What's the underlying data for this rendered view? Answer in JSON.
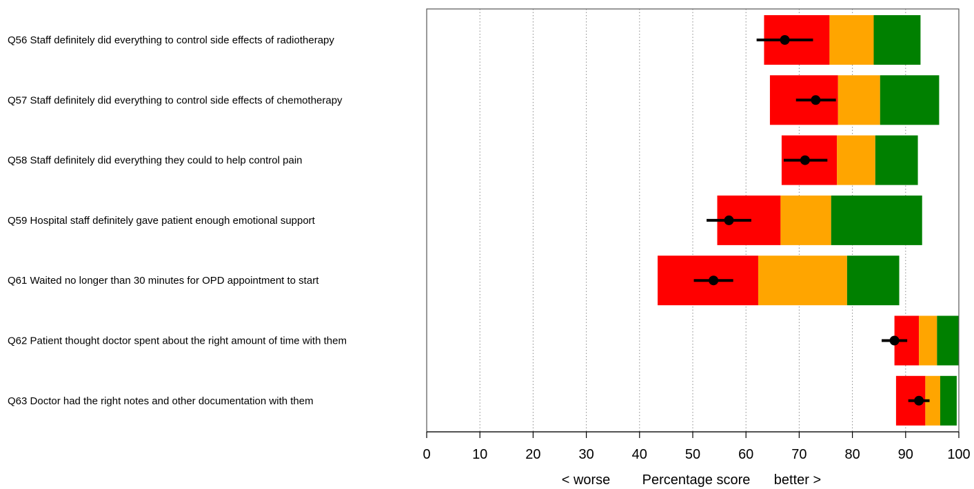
{
  "chart_data": {
    "type": "bar",
    "orientation": "horizontal",
    "x_axis": {
      "left_label": "< worse",
      "title": "Percentage score",
      "right_label": "better >",
      "range": [
        0,
        100
      ],
      "ticks": [
        "0",
        "10",
        "20",
        "30",
        "40",
        "50",
        "60",
        "70",
        "80",
        "90",
        "100"
      ]
    },
    "grid": "vertical dotted",
    "band_colors": {
      "lower": "#ff0000",
      "middle": "#ffa500",
      "upper": "#008000",
      "marker": "#000000"
    },
    "questions": [
      {
        "label": "Q56 Staff definitely did everything to control side effects of radiotherapy",
        "bands": [
          63.4,
          75.7,
          84.0,
          92.8
        ],
        "score": 67.3,
        "ci": [
          62.0,
          72.6
        ]
      },
      {
        "label": "Q57 Staff definitely did everything to control side effects of chemotherapy",
        "bands": [
          64.5,
          77.3,
          85.2,
          96.3
        ],
        "score": 73.1,
        "ci": [
          69.4,
          76.9
        ]
      },
      {
        "label": "Q58 Staff definitely did everything they could to help control pain",
        "bands": [
          66.7,
          77.1,
          84.3,
          92.3
        ],
        "score": 71.1,
        "ci": [
          67.1,
          75.3
        ]
      },
      {
        "label": "Q59 Hospital staff definitely gave patient enough emotional support",
        "bands": [
          54.6,
          66.5,
          76.0,
          93.1
        ],
        "score": 56.8,
        "ci": [
          52.6,
          61.0
        ]
      },
      {
        "label": "Q61 Waited no longer than 30 minutes for OPD appointment to start",
        "bands": [
          43.4,
          62.3,
          79.0,
          88.8
        ],
        "score": 53.9,
        "ci": [
          50.2,
          57.6
        ]
      },
      {
        "label": "Q62 Patient thought doctor spent about the right amount of time with them",
        "bands": [
          87.9,
          92.5,
          95.9,
          100.0
        ],
        "score": 87.9,
        "ci": [
          85.5,
          90.3
        ]
      },
      {
        "label": "Q63 Doctor had the right notes and other documentation with them",
        "bands": [
          88.2,
          93.7,
          96.5,
          99.6
        ],
        "score": 92.5,
        "ci": [
          90.5,
          94.5
        ]
      }
    ]
  }
}
